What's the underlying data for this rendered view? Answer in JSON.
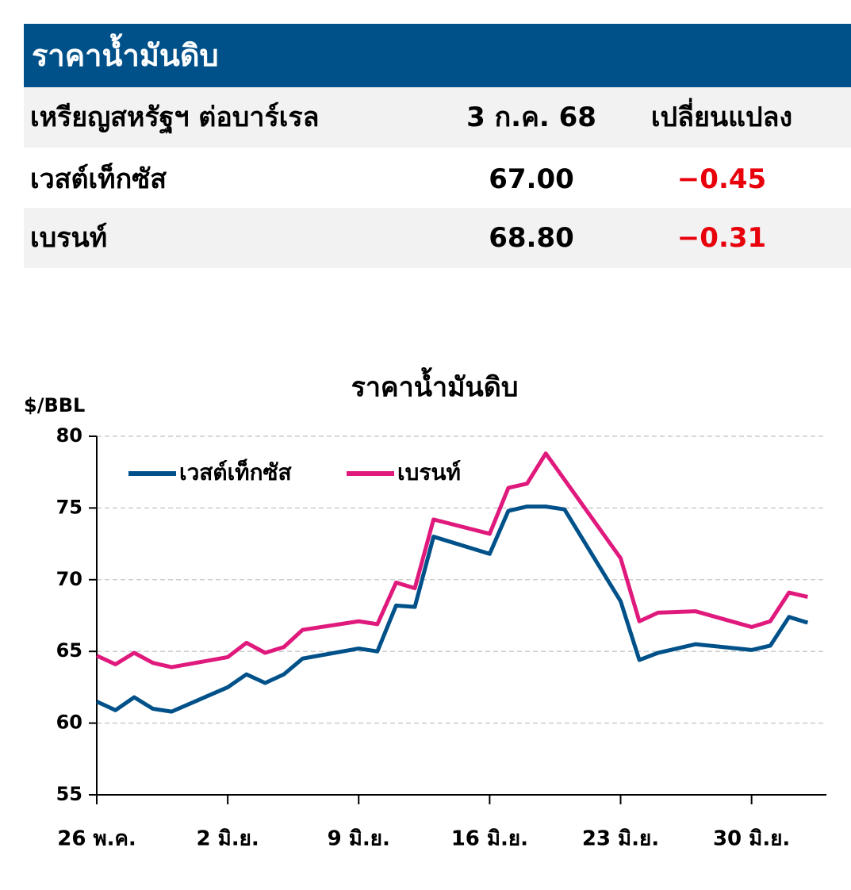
{
  "table": {
    "title": "ราคาน้ำมันดิบ",
    "header": [
      "เหรียญสหรัฐฯ ต่อบาร์เรล",
      "3 ก.ค. 68",
      "เปลี่ยนแปลง"
    ],
    "rows": [
      [
        "เวสต์เท็กซัส",
        "67.00",
        "−0.45"
      ],
      [
        "เบรนท์",
        "68.80",
        "−0.31"
      ]
    ]
  },
  "chart_data": {
    "type": "line",
    "title": "ราคาน้ำมันดิบ",
    "y_label": "$/BBL",
    "xlim": [
      0,
      39
    ],
    "xticks": [
      {
        "value": 0,
        "label": "26 พ.ค."
      },
      {
        "value": 7,
        "label": "2 มิ.ย."
      },
      {
        "value": 14,
        "label": "9 มิ.ย."
      },
      {
        "value": 21,
        "label": "16 มิ.ย."
      },
      {
        "value": 28,
        "label": "23 มิ.ย."
      },
      {
        "value": 35,
        "label": "30 มิ.ย."
      }
    ],
    "ylim": [
      55,
      80
    ],
    "yticks": [
      55,
      60,
      65,
      70,
      75,
      80
    ],
    "grid": true,
    "legend": "top-left",
    "series": [
      {
        "name": "เวสต์เท็กซัส",
        "color": "#005189",
        "x": [
          0,
          1,
          2,
          3,
          4,
          7,
          8,
          9,
          10,
          11,
          14,
          15,
          16,
          17,
          18,
          21,
          22,
          23,
          24,
          25,
          28,
          29,
          30,
          32,
          35,
          36,
          37,
          38
        ],
        "values": [
          61.5,
          60.9,
          61.8,
          61.0,
          60.8,
          62.5,
          63.4,
          62.8,
          63.4,
          64.5,
          65.2,
          65.0,
          68.2,
          68.1,
          73.0,
          71.8,
          74.8,
          75.1,
          75.1,
          74.9,
          68.5,
          64.4,
          64.9,
          65.5,
          65.1,
          65.4,
          67.4,
          67.0
        ]
      },
      {
        "name": "เบรนท์",
        "color": "#e0197d",
        "x": [
          0,
          1,
          2,
          3,
          4,
          7,
          8,
          9,
          10,
          11,
          14,
          15,
          16,
          17,
          18,
          21,
          22,
          23,
          24,
          28,
          29,
          30,
          32,
          35,
          36,
          37,
          38
        ],
        "values": [
          64.7,
          64.1,
          64.9,
          64.2,
          63.9,
          64.6,
          65.6,
          64.9,
          65.3,
          66.5,
          67.1,
          66.9,
          69.8,
          69.4,
          74.2,
          73.2,
          76.4,
          76.7,
          78.8,
          71.5,
          67.1,
          67.7,
          67.8,
          66.7,
          67.1,
          69.1,
          68.8
        ]
      }
    ]
  }
}
